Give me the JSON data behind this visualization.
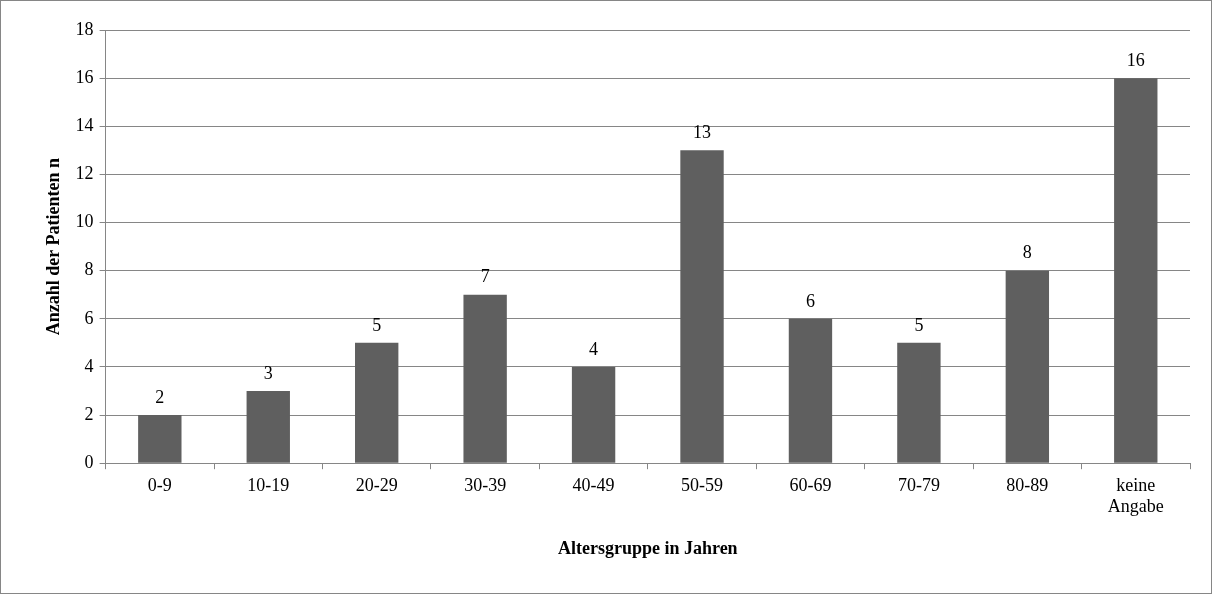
{
  "chart_data": {
    "type": "bar",
    "xlabel": "Altersgruppe in Jahren",
    "ylabel": "Anzahl der Patienten n",
    "categories": [
      "0-9",
      "10-19",
      "20-29",
      "30-39",
      "40-49",
      "50-59",
      "60-69",
      "70-79",
      "80-89",
      "keine Angabe"
    ],
    "values": [
      2,
      3,
      5,
      7,
      4,
      13,
      6,
      5,
      8,
      16
    ],
    "color": "#5f5f5f",
    "ylim": [
      0,
      18
    ],
    "yticks": [
      0,
      2,
      4,
      6,
      8,
      10,
      12,
      14,
      16,
      18
    ],
    "grid": "y",
    "data_labels": true,
    "legend": false
  }
}
